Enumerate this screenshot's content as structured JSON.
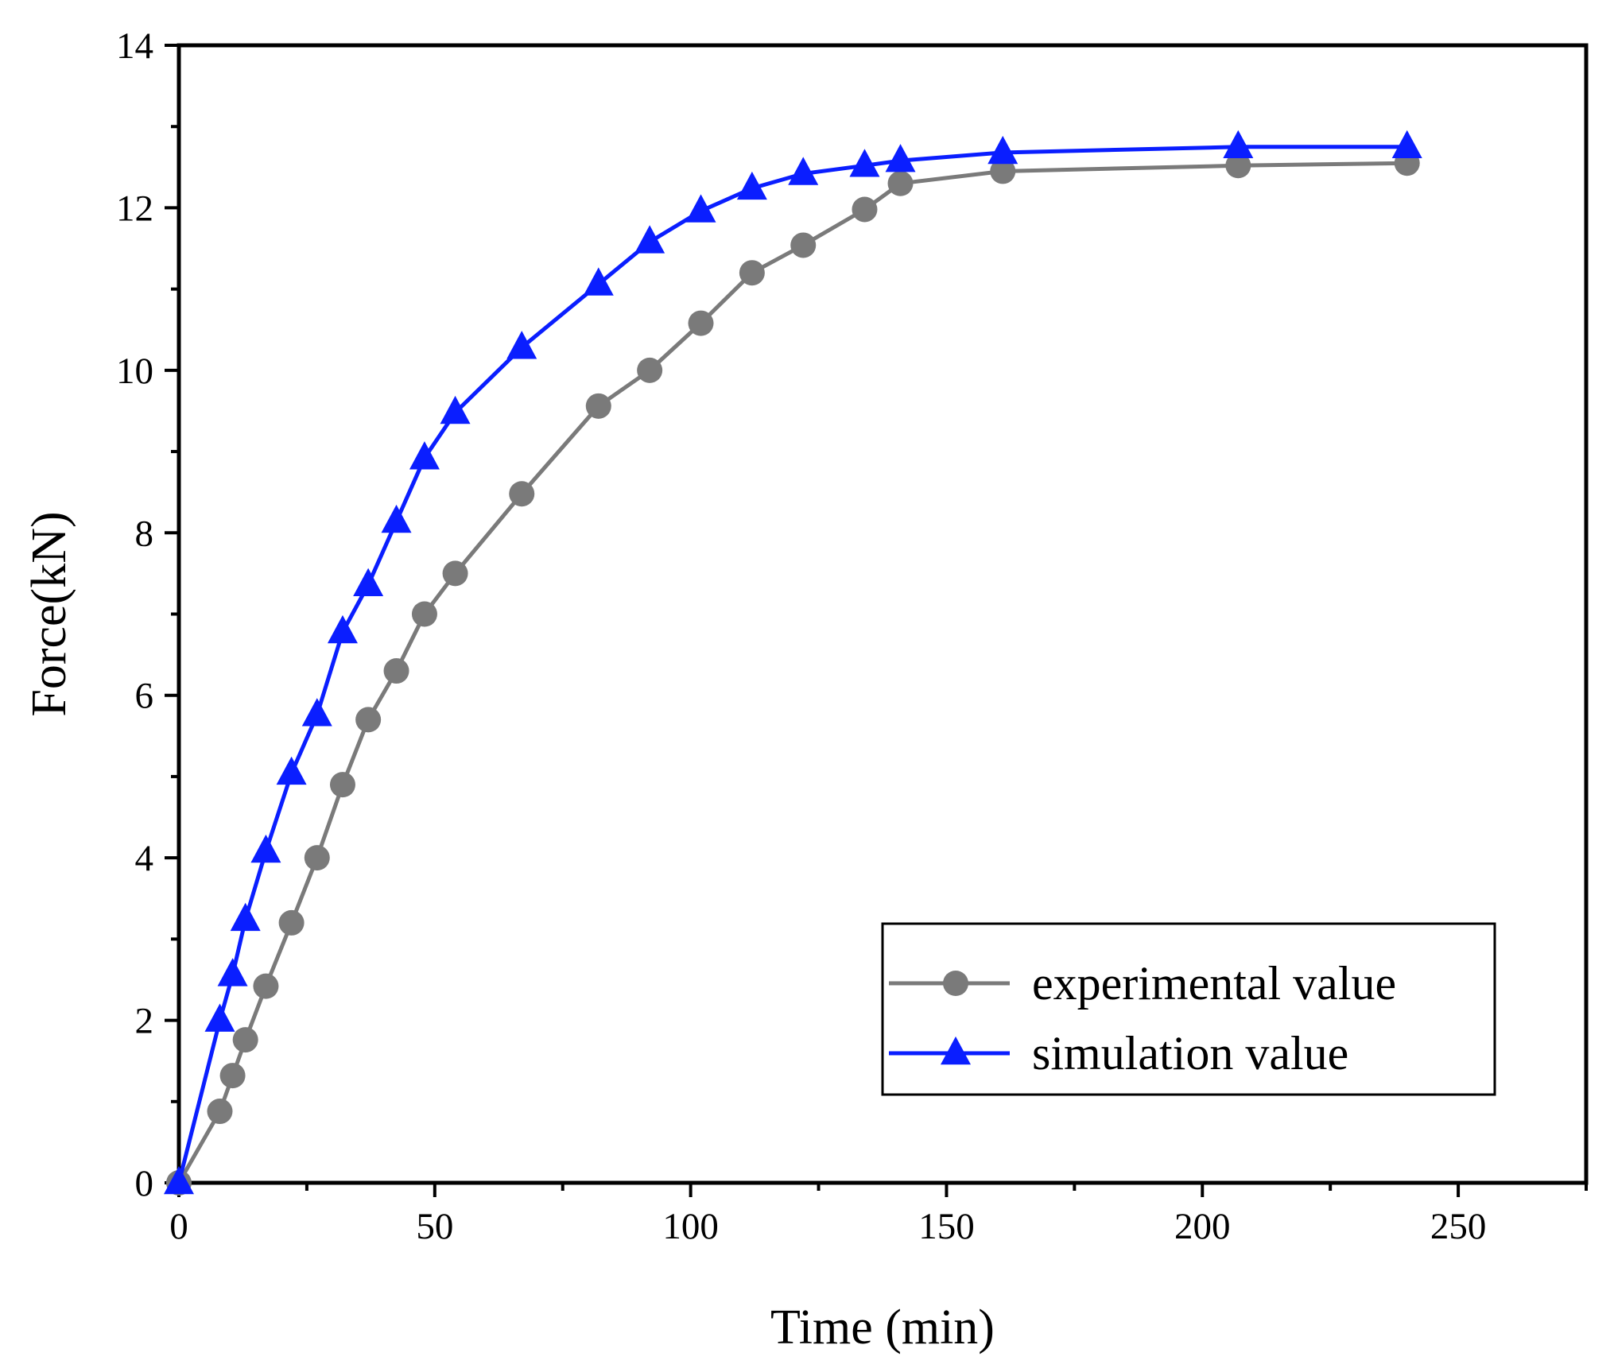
{
  "chart_data": {
    "type": "line",
    "title": "",
    "xlabel": "Time (min)",
    "ylabel": "Force(kN)",
    "xlim": [
      0,
      275
    ],
    "ylim": [
      0,
      14
    ],
    "xticks": [
      0,
      50,
      100,
      150,
      200,
      250
    ],
    "yticks": [
      0,
      2,
      4,
      6,
      8,
      10,
      12,
      14
    ],
    "x_minor_step": 25,
    "y_minor_step": 1,
    "grid": false,
    "legend_position": "bottom-right",
    "series": [
      {
        "name": "experimental value",
        "color": "#7a7a7a",
        "marker": "circle",
        "points": [
          [
            0,
            0
          ],
          [
            8,
            0.88
          ],
          [
            10.5,
            1.32
          ],
          [
            13,
            1.76
          ],
          [
            17,
            2.42
          ],
          [
            22,
            3.2
          ],
          [
            27,
            4.0
          ],
          [
            32,
            4.9
          ],
          [
            37,
            5.7
          ],
          [
            42.5,
            6.3
          ],
          [
            48,
            7.0
          ],
          [
            54,
            7.5
          ],
          [
            67,
            8.48
          ],
          [
            82,
            9.56
          ],
          [
            92,
            10.0
          ],
          [
            102,
            10.58
          ],
          [
            112,
            11.2
          ],
          [
            122,
            11.54
          ],
          [
            134,
            11.98
          ],
          [
            141,
            12.3
          ],
          [
            161,
            12.45
          ],
          [
            207,
            12.52
          ],
          [
            240,
            12.55
          ]
        ]
      },
      {
        "name": "simulation value",
        "color": "#0a1eff",
        "marker": "triangle",
        "points": [
          [
            0,
            0
          ],
          [
            8,
            2.0
          ],
          [
            10.5,
            2.56
          ],
          [
            13,
            3.24
          ],
          [
            17,
            4.08
          ],
          [
            22,
            5.04
          ],
          [
            27,
            5.76
          ],
          [
            32,
            6.78
          ],
          [
            37,
            7.36
          ],
          [
            42.5,
            8.14
          ],
          [
            48,
            8.92
          ],
          [
            54,
            9.48
          ],
          [
            67,
            10.28
          ],
          [
            82,
            11.06
          ],
          [
            92,
            11.58
          ],
          [
            102,
            11.96
          ],
          [
            112,
            12.24
          ],
          [
            122,
            12.42
          ],
          [
            134,
            12.52
          ],
          [
            141,
            12.58
          ],
          [
            161,
            12.68
          ],
          [
            207,
            12.75
          ],
          [
            240,
            12.75
          ]
        ]
      }
    ]
  }
}
